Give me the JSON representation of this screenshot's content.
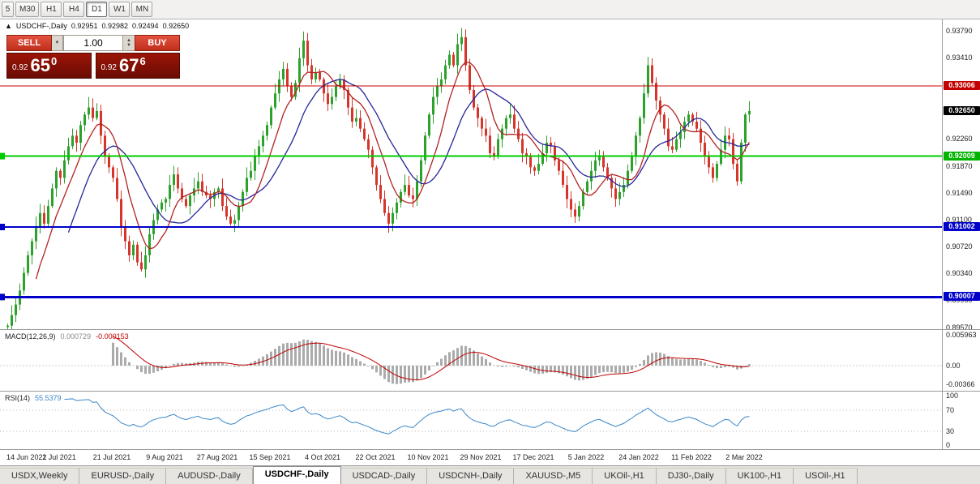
{
  "toolbar": {
    "periods": [
      "5",
      "M30",
      "H1",
      "H4",
      "D1",
      "W1",
      "MN"
    ],
    "active": "D1"
  },
  "chart_header": {
    "collapse_icon": "▲",
    "symbol": "USDCHF-,Daily",
    "open": "0.92951",
    "high": "0.92982",
    "low": "0.92494",
    "close": "0.92650"
  },
  "trade_panel": {
    "sell_label": "SELL",
    "buy_label": "BUY",
    "volume": "1.00",
    "bid_small": "0.92",
    "bid_big": "65",
    "bid_sup": "0",
    "ask_small": "0.92",
    "ask_big": "67",
    "ask_sup": "6"
  },
  "price_axis": {
    "grid": [
      "0.93790",
      "0.93410",
      "0.92260",
      "0.91870",
      "0.91490",
      "0.91100",
      "0.90720",
      "0.90340",
      "0.89960",
      "0.89570"
    ],
    "tags": [
      {
        "value": "0.93006",
        "color": "#c40000"
      },
      {
        "value": "0.92650",
        "color": "#000000"
      },
      {
        "value": "0.92009",
        "color": "#00b400"
      },
      {
        "value": "0.91002",
        "color": "#0000c8"
      },
      {
        "value": "0.90007",
        "color": "#0000c8"
      }
    ]
  },
  "macd": {
    "title": "MACD(12,26,9)",
    "value_main": "0.000729",
    "value_signal": "-0.000153",
    "axis": [
      "0.005963",
      "0.00",
      "-0.00366"
    ]
  },
  "rsi": {
    "title": "RSI(14)",
    "value": "55.5379",
    "axis": [
      "100",
      "70",
      "30",
      "0"
    ]
  },
  "date_axis": [
    "14 Jun 2021",
    "2 Jul 2021",
    "21 Jul 2021",
    "9 Aug 2021",
    "27 Aug 2021",
    "15 Sep 2021",
    "4 Oct 2021",
    "22 Oct 2021",
    "10 Nov 2021",
    "29 Nov 2021",
    "17 Dec 2021",
    "5 Jan 2022",
    "24 Jan 2022",
    "11 Feb 2022",
    "2 Mar 2022"
  ],
  "tabs": {
    "items": [
      "USDX,Weekly",
      "EURUSD-,Daily",
      "AUDUSD-,Daily",
      "USDCHF-,Daily",
      "USDCAD-,Daily",
      "USDCNH-,Daily",
      "XAUUSD-,M5",
      "UKOil-,H1",
      "DJ30-,Daily",
      "UK100-,H1",
      "USOil-,H1"
    ],
    "active": "USDCHF-,Daily"
  },
  "chart_data": {
    "type": "candlestick",
    "symbol": "USDCHF",
    "timeframe": "Daily",
    "title": "USDCHF-,Daily",
    "ylim": [
      0.895,
      0.939
    ],
    "x_labels": [
      "14 Jun 2021",
      "2 Jul 2021",
      "21 Jul 2021",
      "9 Aug 2021",
      "27 Aug 2021",
      "15 Sep 2021",
      "4 Oct 2021",
      "22 Oct 2021",
      "10 Nov 2021",
      "29 Nov 2021",
      "17 Dec 2021",
      "5 Jan 2022",
      "24 Jan 2022",
      "11 Feb 2022",
      "2 Mar 2022"
    ],
    "bars_per_label": 13,
    "first_open": 0.8958,
    "closes": [
      0.896,
      0.8975,
      0.899,
      0.901,
      0.9035,
      0.906,
      0.908,
      0.91,
      0.912,
      0.9105,
      0.913,
      0.9155,
      0.918,
      0.917,
      0.9195,
      0.9215,
      0.923,
      0.922,
      0.9245,
      0.926,
      0.927,
      0.9255,
      0.9265,
      0.923,
      0.92,
      0.9185,
      0.917,
      0.914,
      0.91,
      0.908,
      0.906,
      0.9075,
      0.905,
      0.904,
      0.906,
      0.909,
      0.911,
      0.9125,
      0.9135,
      0.914,
      0.916,
      0.9175,
      0.9155,
      0.914,
      0.913,
      0.9145,
      0.9155,
      0.9165,
      0.915,
      0.9145,
      0.914,
      0.915,
      0.9155,
      0.913,
      0.9115,
      0.9105,
      0.911,
      0.913,
      0.915,
      0.917,
      0.918,
      0.92,
      0.9215,
      0.923,
      0.9245,
      0.927,
      0.929,
      0.931,
      0.9325,
      0.93,
      0.9285,
      0.9305,
      0.934,
      0.9365,
      0.933,
      0.931,
      0.932,
      0.931,
      0.929,
      0.9275,
      0.9285,
      0.93,
      0.931,
      0.9295,
      0.927,
      0.925,
      0.9255,
      0.924,
      0.9225,
      0.921,
      0.9185,
      0.916,
      0.914,
      0.912,
      0.9105,
      0.912,
      0.9135,
      0.915,
      0.916,
      0.9145,
      0.914,
      0.9165,
      0.9195,
      0.923,
      0.926,
      0.9285,
      0.93,
      0.931,
      0.933,
      0.9345,
      0.933,
      0.936,
      0.937,
      0.933,
      0.9295,
      0.927,
      0.9255,
      0.924,
      0.923,
      0.9205,
      0.92,
      0.9225,
      0.924,
      0.9255,
      0.926,
      0.924,
      0.9225,
      0.9205,
      0.92,
      0.9185,
      0.918,
      0.919,
      0.9205,
      0.922,
      0.9215,
      0.9195,
      0.918,
      0.916,
      0.914,
      0.9125,
      0.9115,
      0.913,
      0.915,
      0.9165,
      0.918,
      0.9195,
      0.92,
      0.9185,
      0.917,
      0.9155,
      0.914,
      0.915,
      0.916,
      0.918,
      0.92,
      0.923,
      0.9255,
      0.929,
      0.933,
      0.9305,
      0.928,
      0.926,
      0.924,
      0.9215,
      0.921,
      0.9225,
      0.9235,
      0.925,
      0.926,
      0.925,
      0.924,
      0.922,
      0.92,
      0.9185,
      0.917,
      0.919,
      0.921,
      0.923,
      0.9225,
      0.919,
      0.9165,
      0.922,
      0.926,
      0.9265
    ],
    "hlines": [
      {
        "price": 0.93006,
        "color": "#c40000",
        "width": 1,
        "marker": false
      },
      {
        "price": 0.92009,
        "color": "#00cc00",
        "width": 2,
        "marker": true
      },
      {
        "price": 0.91002,
        "color": "#0000c8",
        "width": 2,
        "marker": true
      },
      {
        "price": 0.90007,
        "color": "#0000c8",
        "width": 3,
        "marker": true
      }
    ],
    "indicators": {
      "ma_fast": {
        "type": "sma",
        "period": 8,
        "color": "#b22222"
      },
      "ma_slow": {
        "type": "sma",
        "period": 16,
        "color": "#26269a"
      },
      "macd": {
        "fast": 12,
        "slow": 26,
        "signal": 9,
        "hist_color": "#ababab",
        "signal_color": "#c00000"
      },
      "rsi": {
        "period": 14,
        "color": "#3a87c8",
        "levels": [
          70,
          30
        ]
      }
    },
    "colors": {
      "bull": "#2ca12c",
      "bear": "#d6352b"
    },
    "legend_position": "none",
    "grid": false
  }
}
